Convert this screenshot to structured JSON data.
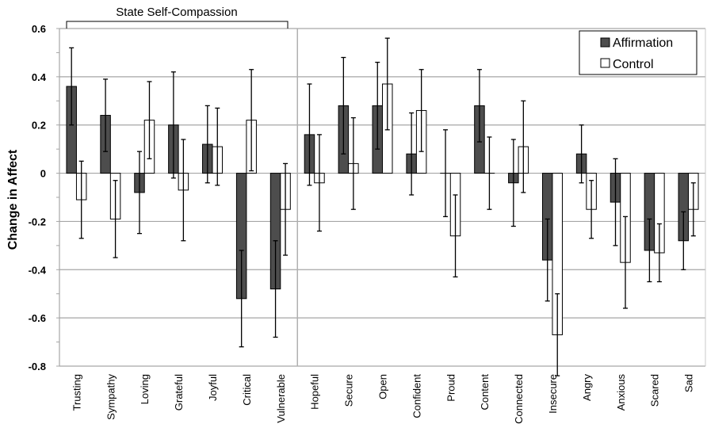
{
  "chart_data": {
    "type": "bar",
    "title": "",
    "xlabel": "",
    "ylabel": "Change in Affect",
    "ylim": [
      -0.8,
      0.6
    ],
    "yticks": [
      "0.6",
      "0.4",
      "0.2",
      "0",
      "-0.2",
      "-0.4",
      "-0.6",
      "-0.8"
    ],
    "grid": true,
    "legend_position": "top-right",
    "group_annotation": {
      "label": "State Self-Compassion",
      "from": "Trusting",
      "to": "Vulnerable"
    },
    "categories": [
      "Trusting",
      "Sympathy",
      "Loving",
      "Grateful",
      "Joyful",
      "Critical",
      "Vulnerable",
      "Hopeful",
      "Secure",
      "Open",
      "Confident",
      "Proud",
      "Content",
      "Connected",
      "Insecure",
      "Angry",
      "Anxious",
      "Scared",
      "Sad"
    ],
    "series": [
      {
        "name": "Affirmation",
        "color": "#4d4d4d",
        "values": [
          0.36,
          0.24,
          -0.08,
          0.2,
          0.12,
          -0.52,
          -0.48,
          0.16,
          0.28,
          0.28,
          0.08,
          0.0,
          0.28,
          -0.04,
          -0.36,
          0.08,
          -0.12,
          -0.32,
          -0.28
        ],
        "err_high": [
          0.52,
          0.39,
          0.09,
          0.42,
          0.28,
          -0.32,
          -0.28,
          0.37,
          0.48,
          0.46,
          0.25,
          0.18,
          0.43,
          0.14,
          -0.19,
          0.2,
          0.06,
          -0.19,
          -0.16
        ],
        "err_low": [
          0.2,
          0.09,
          -0.25,
          -0.02,
          -0.04,
          -0.72,
          -0.68,
          -0.05,
          0.08,
          0.1,
          -0.09,
          -0.18,
          0.13,
          -0.22,
          -0.53,
          -0.04,
          -0.3,
          -0.45,
          -0.4
        ]
      },
      {
        "name": "Control",
        "color": "#ffffff",
        "values": [
          -0.11,
          -0.19,
          0.22,
          -0.07,
          0.11,
          0.22,
          -0.15,
          -0.04,
          0.04,
          0.37,
          0.26,
          -0.26,
          0.0,
          0.11,
          -0.67,
          -0.15,
          -0.37,
          -0.33,
          -0.15
        ],
        "err_high": [
          0.05,
          -0.03,
          0.38,
          0.14,
          0.27,
          0.43,
          0.04,
          0.16,
          0.23,
          0.56,
          0.43,
          -0.09,
          0.15,
          0.3,
          -0.5,
          -0.03,
          -0.18,
          -0.21,
          -0.04
        ],
        "err_low": [
          -0.27,
          -0.35,
          0.06,
          -0.28,
          -0.05,
          0.01,
          -0.34,
          -0.24,
          -0.15,
          0.18,
          0.09,
          -0.43,
          -0.15,
          -0.08,
          -0.84,
          -0.27,
          -0.56,
          -0.45,
          -0.26
        ]
      }
    ]
  }
}
